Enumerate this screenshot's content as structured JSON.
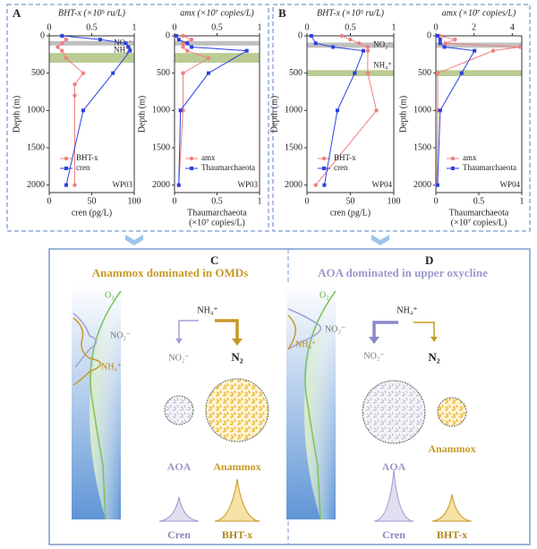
{
  "chart_data": [
    {
      "type": "line",
      "panel": "A",
      "x2label": "BHT-x (×10⁵ ru/L)",
      "xlabel": [
        "cren (pg/L)"
      ],
      "ylabel": "Depth (m)",
      "x2lim": [
        0,
        1
      ],
      "x2ticks": [
        0,
        0.5,
        1
      ],
      "xlim": [
        0,
        100
      ],
      "xticks": [
        0,
        50,
        100
      ],
      "ylim": [
        0,
        2100
      ],
      "yticks": [
        0,
        500,
        1000,
        1500,
        2000
      ],
      "annotation": "WP03",
      "bands": [
        {
          "label": "NO₂⁻",
          "range": [
            70,
            130
          ],
          "color": "#b0b0b0"
        },
        {
          "label": "NH₄⁺",
          "range": [
            230,
            360
          ],
          "color": "#a9bf78"
        }
      ],
      "series": [
        {
          "name": "BHT-x",
          "color": "#f07f7f",
          "axis": "x2",
          "marker": "circle",
          "x": [
            0.15,
            0.2,
            0.15,
            0.1,
            0.15,
            0.2,
            0.4,
            0.3,
            0.3,
            0.3
          ],
          "values": [
            0,
            50,
            100,
            150,
            200,
            300,
            500,
            650,
            800,
            2000
          ]
        },
        {
          "name": "cren",
          "color": "#2b3fe0",
          "axis": "x",
          "marker": "square",
          "x": [
            15,
            60,
            90,
            93,
            95,
            75,
            40,
            20
          ],
          "values": [
            0,
            50,
            100,
            150,
            200,
            500,
            1000,
            2000
          ]
        }
      ]
    },
    {
      "type": "line",
      "x2label": "amx (×10⁷ copies/L)",
      "xlabel": [
        "Thaumarchaeota",
        "(×10⁷ copies/L)"
      ],
      "ylabel": "Depth (m)",
      "x2lim": [
        0,
        1
      ],
      "x2ticks": [
        0,
        0.5,
        1
      ],
      "xlim": [
        0,
        1
      ],
      "xticks": [
        0,
        0.5,
        1
      ],
      "ylim": [
        0,
        2100
      ],
      "yticks": [
        0,
        500,
        1000,
        1500,
        2000
      ],
      "annotation": "WP03",
      "bands": [
        {
          "range": [
            70,
            130
          ],
          "color": "#b0b0b0"
        },
        {
          "range": [
            230,
            360
          ],
          "color": "#a9bf78"
        }
      ],
      "series": [
        {
          "name": "amx",
          "color": "#f07f7f",
          "axis": "x2",
          "marker": "circle",
          "x": [
            0.1,
            0.2,
            0.1,
            0.1,
            0.15,
            0.4,
            0.1,
            0.1,
            0.05
          ],
          "values": [
            0,
            50,
            100,
            150,
            200,
            300,
            500,
            1000,
            2000
          ]
        },
        {
          "name": "Thaumarchaeota",
          "color": "#2b3fe0",
          "axis": "x",
          "marker": "square",
          "x": [
            0.02,
            0.05,
            0.15,
            0.2,
            0.85,
            0.4,
            0.07,
            0.05
          ],
          "values": [
            0,
            50,
            100,
            150,
            200,
            500,
            1000,
            2000
          ]
        }
      ]
    },
    {
      "type": "line",
      "panel": "B",
      "x2label": "BHT-x (×10⁵ ru/L)",
      "xlabel": [
        "cren (pg/L)"
      ],
      "ylabel": "Depth (m)",
      "x2lim": [
        0,
        1
      ],
      "x2ticks": [
        0,
        0.5,
        1
      ],
      "xlim": [
        0,
        100
      ],
      "xticks": [
        0,
        50,
        100
      ],
      "ylim": [
        0,
        2100
      ],
      "yticks": [
        0,
        500,
        1000,
        1500,
        2000
      ],
      "annotation": "WP04",
      "bands": [
        {
          "label": "NO₂⁻",
          "range": [
            90,
            160
          ],
          "color": "#b0b0b0"
        },
        {
          "label": "NH₄⁺",
          "range": [
            460,
            540
          ],
          "color": "#a9bf78"
        }
      ],
      "series": [
        {
          "name": "BHT-x",
          "color": "#f07f7f",
          "axis": "x2",
          "marker": "circle",
          "x": [
            0.4,
            0.5,
            0.6,
            0.7,
            0.7,
            0.7,
            0.8,
            0.1
          ],
          "values": [
            0,
            50,
            100,
            150,
            200,
            500,
            1000,
            2000
          ]
        },
        {
          "name": "cren",
          "color": "#2b3fe0",
          "axis": "x",
          "marker": "square",
          "x": [
            5,
            10,
            30,
            65,
            55,
            35,
            20
          ],
          "values": [
            0,
            100,
            150,
            200,
            500,
            1000,
            2000
          ]
        }
      ]
    },
    {
      "type": "line",
      "x2label": "amx (×10⁷ copies/L)",
      "xlabel": [
        "Thaumarchaeota",
        "(×10⁷ copies/L)"
      ],
      "ylabel": "Depth (m)",
      "x2lim": [
        0,
        4.5
      ],
      "x2ticks": [
        0,
        2,
        4
      ],
      "xlim": [
        0,
        1
      ],
      "xticks": [
        0,
        0.5,
        1
      ],
      "ylim": [
        0,
        2100
      ],
      "yticks": [
        0,
        500,
        1000,
        1500,
        2000
      ],
      "annotation": "WP04",
      "bands": [
        {
          "range": [
            90,
            160
          ],
          "color": "#b0b0b0"
        },
        {
          "range": [
            460,
            540
          ],
          "color": "#a9bf78"
        }
      ],
      "series": [
        {
          "name": "amx",
          "color": "#f07f7f",
          "axis": "x2",
          "marker": "circle",
          "x": [
            0.2,
            1,
            0.5,
            4.4,
            3,
            0.1,
            0.1,
            0.05
          ],
          "values": [
            0,
            50,
            100,
            150,
            200,
            500,
            1000,
            2000
          ]
        },
        {
          "name": "Thaumarchaeota",
          "color": "#2b3fe0",
          "axis": "x",
          "marker": "square",
          "x": [
            0.02,
            0.05,
            0.05,
            0.1,
            0.45,
            0.3,
            0.05,
            0.02
          ],
          "values": [
            0,
            50,
            100,
            150,
            200,
            500,
            1000,
            2000
          ]
        }
      ]
    }
  ],
  "diagrams": [
    {
      "label": "C",
      "title": "Anammox dominated in OMDs",
      "o2": "O₂",
      "no2": "NO₂⁻",
      "nh4": "NH₄⁺",
      "n2": "N₂",
      "aoa": "AOA",
      "anammox": "Anammox",
      "cren": "Cren",
      "bht": "BHT-x"
    },
    {
      "label": "D",
      "title": "AOA dominated in upper oxycline",
      "o2": "O₂",
      "no2": "NO₂⁻",
      "nh4": "NH₄⁺",
      "n2": "N₂",
      "aoa": "AOA",
      "anammox": "Anammox",
      "cren": "Cren",
      "bht": "BHT-x"
    }
  ]
}
